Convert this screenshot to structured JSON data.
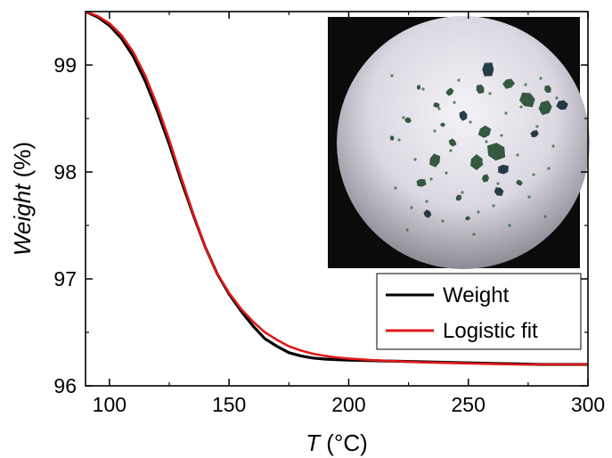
{
  "chart_data": {
    "type": "line",
    "xlabel": {
      "italic": "T",
      "unit": " (°C)"
    },
    "ylabel": {
      "italic": "Weight",
      "unit": " (%)"
    },
    "xlim": [
      90,
      300
    ],
    "ylim": [
      96.0,
      99.5
    ],
    "xticks": [
      100,
      150,
      200,
      250,
      300
    ],
    "yticks": [
      96,
      97,
      98,
      99
    ],
    "xtick_labels": [
      "100",
      "150",
      "200",
      "250",
      "300"
    ],
    "ytick_labels": [
      "96",
      "97",
      "98",
      "99"
    ],
    "legend_position": "inside-right",
    "series": [
      {
        "name": "Weight",
        "color": "#000000",
        "x": [
          90,
          95,
          100,
          105,
          110,
          115,
          120,
          125,
          130,
          135,
          140,
          145,
          150,
          155,
          160,
          165,
          170,
          175,
          180,
          185,
          190,
          195,
          200,
          210,
          220,
          230,
          240,
          250,
          260,
          270,
          280,
          290,
          300
        ],
        "y": [
          99.5,
          99.45,
          99.37,
          99.25,
          99.08,
          98.85,
          98.57,
          98.26,
          97.92,
          97.6,
          97.3,
          97.05,
          96.86,
          96.7,
          96.56,
          96.44,
          96.37,
          96.31,
          96.28,
          96.26,
          96.25,
          96.245,
          96.24,
          96.235,
          96.23,
          96.225,
          96.22,
          96.215,
          96.21,
          96.205,
          96.2,
          96.2,
          96.2
        ]
      },
      {
        "name": "Logistic fit",
        "color": "#e01919",
        "x": [
          90,
          95,
          100,
          105,
          110,
          115,
          120,
          125,
          130,
          135,
          140,
          145,
          150,
          155,
          160,
          165,
          170,
          175,
          180,
          185,
          190,
          195,
          200,
          210,
          220,
          230,
          240,
          250,
          260,
          270,
          280,
          290,
          300
        ],
        "y": [
          99.5,
          99.46,
          99.39,
          99.28,
          99.12,
          98.9,
          98.62,
          98.3,
          97.95,
          97.61,
          97.3,
          97.05,
          96.87,
          96.72,
          96.6,
          96.5,
          96.43,
          96.37,
          96.33,
          96.3,
          96.28,
          96.265,
          96.255,
          96.24,
          96.23,
          96.22,
          96.215,
          96.21,
          96.205,
          96.2,
          96.2,
          96.2,
          96.2
        ]
      }
    ]
  },
  "inset": {
    "kind": "microscope-photo",
    "background": "#0b0b0b",
    "field_color": "#e9e6ee",
    "crystal_color": "#1f4a2e"
  }
}
